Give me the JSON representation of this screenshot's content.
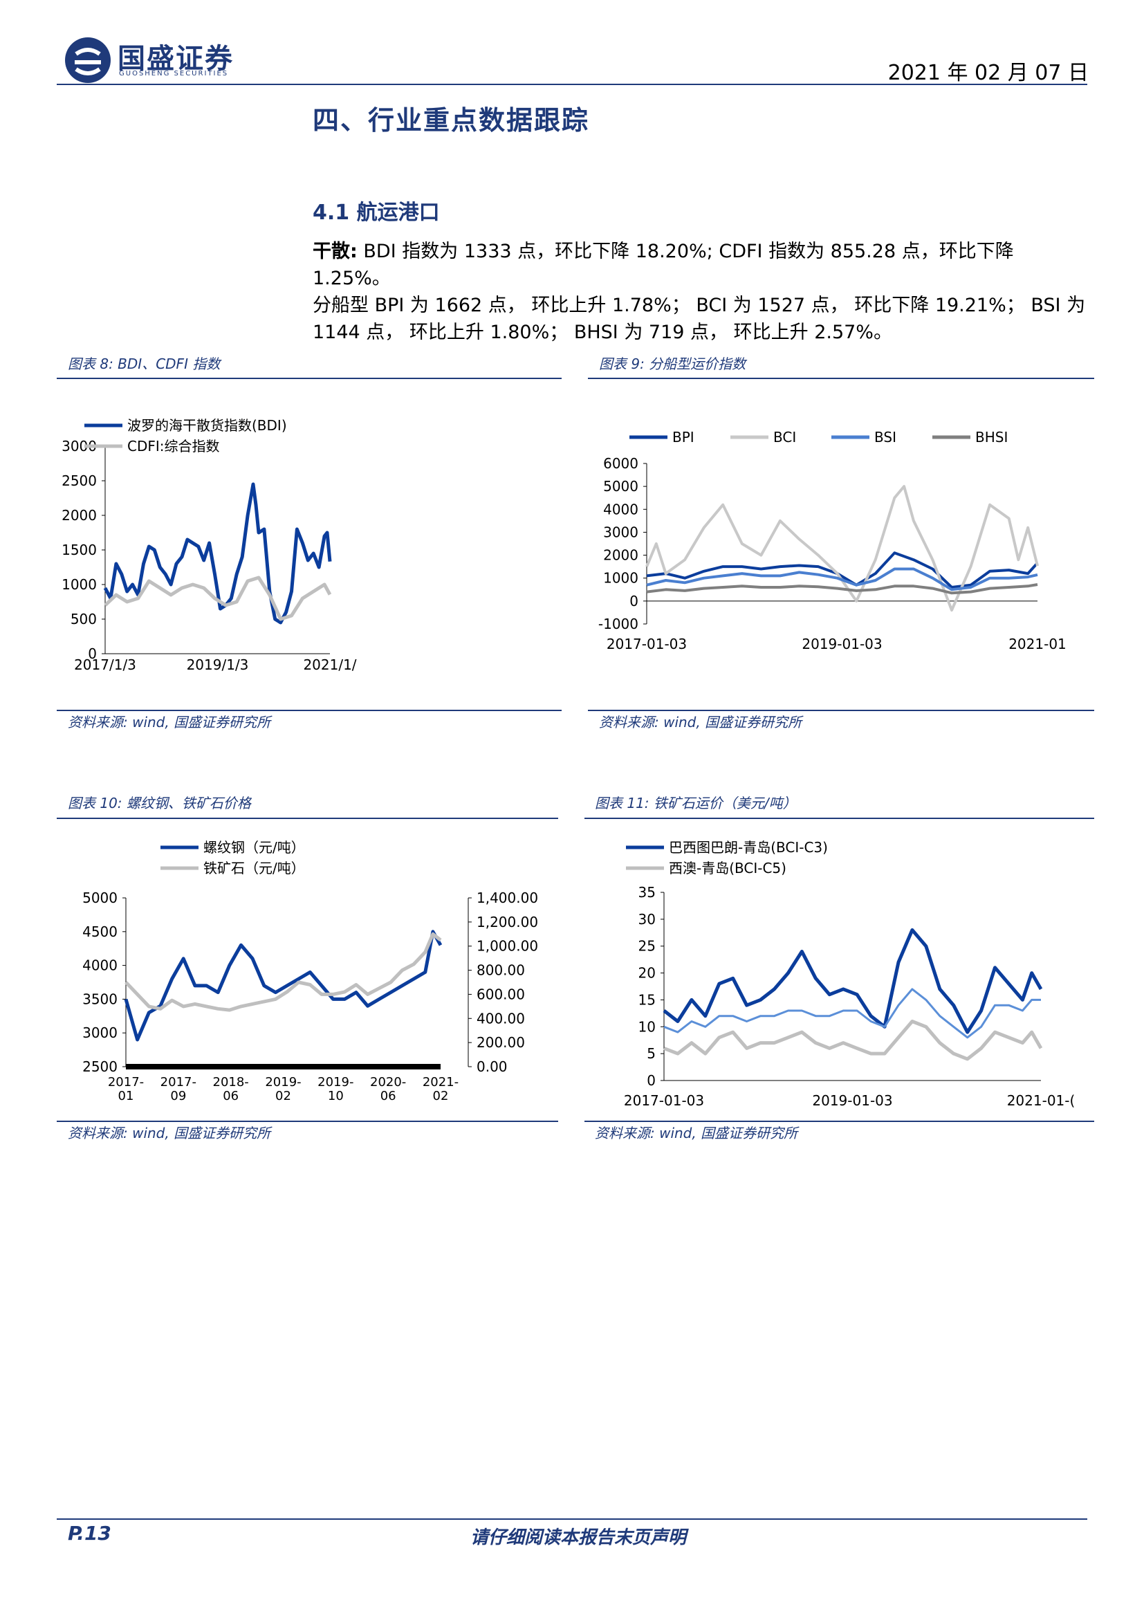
{
  "header": {
    "logo_cn": "国盛证券",
    "logo_en": "GUOSHENG SECURITIES",
    "date": "2021 年 02 月 07 日"
  },
  "section_title": "四、行业重点数据跟踪",
  "subsection_title": "4.1 航运港口",
  "paragraph": {
    "lead": "干散:",
    "line1": " BDI 指数为 1333 点，环比下降 18.20%; CDFI 指数为 855.28 点，环比下降 1.25%。",
    "line2": "分船型 BPI 为 1662 点， 环比上升 1.78%； BCI 为 1527 点， 环比下降 19.21%； BSI 为",
    "line3": "1144 点， 环比上升 1.80%； BHSI 为 719 点， 环比上升 2.57%。"
  },
  "figures": [
    {
      "title": "图表 8:  BDI、CDFI 指数",
      "source": "资料来源:  wind,  国盛证券研究所"
    },
    {
      "title": "图表 9:  分船型运价指数",
      "source": "资料来源:  wind,  国盛证券研究所"
    },
    {
      "title": "图表 10:  螺纹钢、铁矿石价格",
      "source": "资料来源:  wind,  国盛证券研究所"
    },
    {
      "title": "图表 11:  铁矿石运价（美元/吨）",
      "source": "资料来源:  wind,  国盛证券研究所"
    }
  ],
  "footer": {
    "page": "P.13",
    "notice": "请仔细阅读本报告末页声明"
  },
  "chart_data": [
    {
      "type": "line",
      "title": "",
      "ylim": [
        0,
        3000
      ],
      "yticks": [
        "0",
        "500",
        "1000",
        "1500",
        "2000",
        "2500",
        "3000"
      ],
      "xticks": [
        "2017/1/3",
        "2019/1/3",
        "2021/1/"
      ],
      "legend": "top-left",
      "series": [
        {
          "name": "波罗的海干散货指数(BDI)",
          "color": "#0b3d9c",
          "x": [
            2017.0,
            2017.1,
            2017.2,
            2017.3,
            2017.4,
            2017.5,
            2017.6,
            2017.7,
            2017.8,
            2017.9,
            2018.0,
            2018.1,
            2018.2,
            2018.3,
            2018.4,
            2018.5,
            2018.6,
            2018.7,
            2018.8,
            2018.9,
            2019.0,
            2019.1,
            2019.2,
            2019.3,
            2019.4,
            2019.5,
            2019.6,
            2019.7,
            2019.75,
            2019.8,
            2019.9,
            2020.0,
            2020.1,
            2020.2,
            2020.3,
            2020.4,
            2020.5,
            2020.6,
            2020.7,
            2020.8,
            2020.9,
            2021.0,
            2021.05,
            2021.1
          ],
          "y": [
            950,
            800,
            1300,
            1150,
            900,
            1000,
            850,
            1300,
            1550,
            1500,
            1250,
            1150,
            1000,
            1300,
            1400,
            1650,
            1600,
            1550,
            1350,
            1600,
            1150,
            650,
            700,
            800,
            1150,
            1400,
            2000,
            2450,
            2150,
            1750,
            1800,
            900,
            500,
            450,
            600,
            900,
            1800,
            1600,
            1350,
            1450,
            1250,
            1700,
            1750,
            1333
          ]
        },
        {
          "name": "CDFI:综合指数",
          "color": "#bfbfbf",
          "x": [
            2017.0,
            2017.2,
            2017.4,
            2017.6,
            2017.8,
            2018.0,
            2018.2,
            2018.4,
            2018.6,
            2018.8,
            2019.0,
            2019.2,
            2019.4,
            2019.6,
            2019.8,
            2020.0,
            2020.2,
            2020.4,
            2020.6,
            2020.8,
            2021.0,
            2021.1
          ],
          "y": [
            700,
            850,
            750,
            800,
            1050,
            950,
            850,
            950,
            1000,
            950,
            800,
            700,
            750,
            1050,
            1100,
            850,
            500,
            550,
            800,
            900,
            1000,
            855
          ]
        }
      ]
    },
    {
      "type": "line",
      "title": "",
      "ylim": [
        -1000,
        6000
      ],
      "yticks": [
        "-1000",
        "0",
        "1000",
        "2000",
        "3000",
        "4000",
        "5000",
        "6000"
      ],
      "xticks": [
        "2017-01-03",
        "2019-01-03",
        "2021-01"
      ],
      "legend": "top",
      "series": [
        {
          "name": "BPI",
          "color": "#0b3d9c",
          "x": [
            2017.0,
            2017.2,
            2017.4,
            2017.6,
            2017.8,
            2018.0,
            2018.2,
            2018.4,
            2018.6,
            2018.8,
            2019.0,
            2019.2,
            2019.4,
            2019.6,
            2019.8,
            2020.0,
            2020.2,
            2020.4,
            2020.6,
            2020.8,
            2021.0,
            2021.1
          ],
          "y": [
            1100,
            1200,
            1000,
            1300,
            1500,
            1500,
            1400,
            1500,
            1550,
            1500,
            1200,
            700,
            1200,
            2100,
            1800,
            1400,
            600,
            700,
            1300,
            1350,
            1200,
            1662
          ]
        },
        {
          "name": "BCI",
          "color": "#c8c8c8",
          "x": [
            2017.0,
            2017.1,
            2017.2,
            2017.4,
            2017.6,
            2017.8,
            2018.0,
            2018.2,
            2018.4,
            2018.6,
            2018.8,
            2019.0,
            2019.2,
            2019.4,
            2019.6,
            2019.7,
            2019.8,
            2020.0,
            2020.2,
            2020.4,
            2020.6,
            2020.8,
            2020.9,
            2021.0,
            2021.1
          ],
          "y": [
            1500,
            2500,
            1200,
            1800,
            3200,
            4200,
            2500,
            2000,
            3500,
            2700,
            2000,
            1200,
            0,
            1800,
            4500,
            5000,
            3500,
            1800,
            -400,
            1500,
            4200,
            3600,
            1800,
            3200,
            1527
          ]
        },
        {
          "name": "BSI",
          "color": "#4a7fd0",
          "x": [
            2017.0,
            2017.2,
            2017.4,
            2017.6,
            2017.8,
            2018.0,
            2018.2,
            2018.4,
            2018.6,
            2018.8,
            2019.0,
            2019.2,
            2019.4,
            2019.6,
            2019.8,
            2020.0,
            2020.2,
            2020.4,
            2020.6,
            2020.8,
            2021.0,
            2021.1
          ],
          "y": [
            700,
            900,
            800,
            1000,
            1100,
            1200,
            1100,
            1100,
            1250,
            1150,
            1000,
            700,
            900,
            1400,
            1400,
            1000,
            500,
            600,
            1000,
            1000,
            1050,
            1144
          ]
        },
        {
          "name": "BHSI",
          "color": "#7f7f7f",
          "x": [
            2017.0,
            2017.2,
            2017.4,
            2017.6,
            2017.8,
            2018.0,
            2018.2,
            2018.4,
            2018.6,
            2018.8,
            2019.0,
            2019.2,
            2019.4,
            2019.6,
            2019.8,
            2020.0,
            2020.2,
            2020.4,
            2020.6,
            2020.8,
            2021.0,
            2021.1
          ],
          "y": [
            400,
            500,
            450,
            550,
            600,
            650,
            600,
            600,
            650,
            620,
            550,
            450,
            500,
            650,
            650,
            550,
            350,
            400,
            550,
            600,
            650,
            719
          ]
        }
      ]
    },
    {
      "type": "line",
      "title": "",
      "ylim": [
        2500,
        5000
      ],
      "y2lim": [
        0,
        1400
      ],
      "yticks": [
        "2500",
        "3000",
        "3500",
        "4000",
        "4500",
        "5000"
      ],
      "y2ticks": [
        "0.00",
        "200.00",
        "400.00",
        "600.00",
        "800.00",
        "1,000.00",
        "1,200.00",
        "1,400.00"
      ],
      "xticks": [
        "2017-\n01",
        "2017-\n09",
        "2018-\n06",
        "2019-\n02",
        "2019-\n10",
        "2020-\n06",
        "2021-\n02"
      ],
      "legend": "top-left",
      "series": [
        {
          "name": "螺纹钢（元/吨）",
          "color": "#0b3d9c",
          "axis": "left",
          "x": [
            2017.0,
            2017.15,
            2017.3,
            2017.45,
            2017.6,
            2017.75,
            2017.9,
            2018.05,
            2018.2,
            2018.35,
            2018.5,
            2018.65,
            2018.8,
            2018.95,
            2019.1,
            2019.25,
            2019.4,
            2019.55,
            2019.7,
            2019.85,
            2020.0,
            2020.15,
            2020.3,
            2020.45,
            2020.6,
            2020.75,
            2020.9,
            2021.0,
            2021.1
          ],
          "y": [
            3500,
            2900,
            3300,
            3400,
            3800,
            4100,
            3700,
            3700,
            3600,
            4000,
            4300,
            4100,
            3700,
            3600,
            3700,
            3800,
            3900,
            3700,
            3500,
            3500,
            3600,
            3400,
            3500,
            3600,
            3700,
            3800,
            3900,
            4500,
            4300
          ]
        },
        {
          "name": "铁矿石（元/吨）",
          "color": "#bfbfbf",
          "axis": "right",
          "x": [
            2017.0,
            2017.15,
            2017.3,
            2017.45,
            2017.6,
            2017.75,
            2017.9,
            2018.05,
            2018.2,
            2018.35,
            2018.5,
            2018.65,
            2018.8,
            2018.95,
            2019.1,
            2019.25,
            2019.4,
            2019.55,
            2019.7,
            2019.85,
            2020.0,
            2020.15,
            2020.3,
            2020.45,
            2020.6,
            2020.75,
            2020.9,
            2021.0,
            2021.1
          ],
          "y": [
            700,
            600,
            500,
            480,
            550,
            500,
            520,
            500,
            480,
            470,
            500,
            520,
            540,
            560,
            620,
            700,
            680,
            600,
            600,
            620,
            680,
            600,
            650,
            700,
            800,
            850,
            950,
            1100,
            1050
          ]
        }
      ]
    },
    {
      "type": "line",
      "title": "",
      "ylim": [
        0,
        35
      ],
      "yticks": [
        "0",
        "5",
        "10",
        "15",
        "20",
        "25",
        "30",
        "35"
      ],
      "xticks": [
        "2017-01-03",
        "2019-01-03",
        "2021-01-("
      ],
      "legend": "top-left",
      "series": [
        {
          "name": "巴西图巴朗-青岛(BCI-C3)",
          "color": "#0b3d9c",
          "x": [
            2017.0,
            2017.15,
            2017.3,
            2017.45,
            2017.6,
            2017.75,
            2017.9,
            2018.05,
            2018.2,
            2018.35,
            2018.5,
            2018.65,
            2018.8,
            2018.95,
            2019.1,
            2019.25,
            2019.4,
            2019.55,
            2019.7,
            2019.85,
            2020.0,
            2020.15,
            2020.3,
            2020.45,
            2020.6,
            2020.75,
            2020.9,
            2021.0,
            2021.1
          ],
          "y": [
            13,
            11,
            15,
            12,
            18,
            19,
            14,
            15,
            17,
            20,
            24,
            19,
            16,
            17,
            16,
            12,
            10,
            22,
            28,
            25,
            17,
            14,
            9,
            13,
            21,
            18,
            15,
            20,
            17
          ]
        },
        {
          "name": "西澳-青岛(BCI-C5)",
          "color": "#bfbfbf",
          "x": [
            2017.0,
            2017.15,
            2017.3,
            2017.45,
            2017.6,
            2017.75,
            2017.9,
            2018.05,
            2018.2,
            2018.35,
            2018.5,
            2018.65,
            2018.8,
            2018.95,
            2019.1,
            2019.25,
            2019.4,
            2019.55,
            2019.7,
            2019.85,
            2020.0,
            2020.15,
            2020.3,
            2020.45,
            2020.6,
            2020.75,
            2020.9,
            2021.0,
            2021.1
          ],
          "y": [
            6,
            5,
            7,
            5,
            8,
            9,
            6,
            7,
            7,
            8,
            9,
            7,
            6,
            7,
            6,
            5,
            5,
            8,
            11,
            10,
            7,
            5,
            4,
            6,
            9,
            8,
            7,
            9,
            6
          ]
        },
        {
          "name": "",
          "color": "#5b8fd8",
          "x": [
            2017.0,
            2017.15,
            2017.3,
            2017.45,
            2017.6,
            2017.75,
            2017.9,
            2018.05,
            2018.2,
            2018.35,
            2018.5,
            2018.65,
            2018.8,
            2018.95,
            2019.1,
            2019.25,
            2019.4,
            2019.55,
            2019.7,
            2019.85,
            2020.0,
            2020.15,
            2020.3,
            2020.45,
            2020.6,
            2020.75,
            2020.9,
            2021.0,
            2021.1
          ],
          "y": [
            10,
            9,
            11,
            10,
            12,
            12,
            11,
            12,
            12,
            13,
            13,
            12,
            12,
            13,
            13,
            11,
            10,
            14,
            17,
            15,
            12,
            10,
            8,
            10,
            14,
            14,
            13,
            15,
            15
          ]
        }
      ]
    }
  ]
}
